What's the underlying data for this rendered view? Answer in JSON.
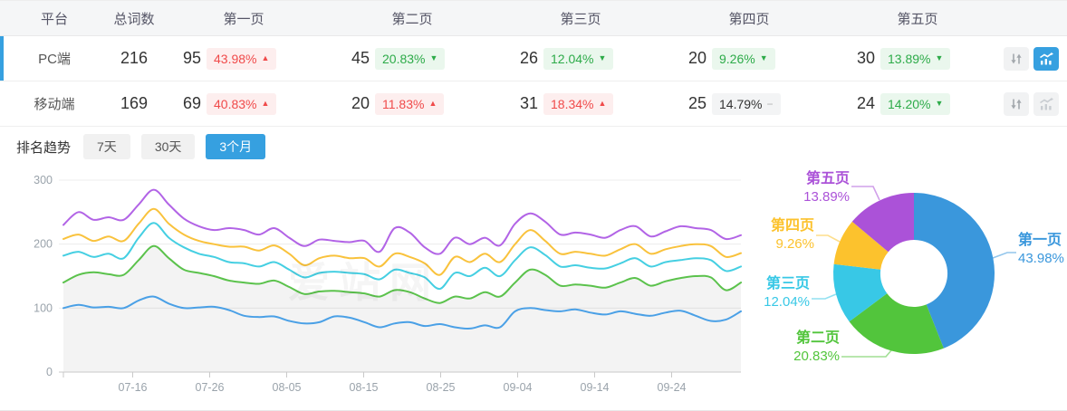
{
  "colors": {
    "accent": "#36a0e0",
    "badge_up_text": "#f04a4a",
    "badge_up_bg": "#fdeeee",
    "badge_down_text": "#2dab49",
    "badge_down_bg": "#eaf7ed",
    "badge_flat_text": "#333333",
    "badge_flat_bg": "#f3f4f5",
    "axis_text": "#9aa3ab",
    "grid_line": "#ececec",
    "axis_line": "#c9c9c9"
  },
  "table": {
    "columns": [
      "平台",
      "总词数",
      "第一页",
      "第二页",
      "第三页",
      "第四页",
      "第五页",
      ""
    ],
    "rows": [
      {
        "platform": "PC端",
        "total": "216",
        "active": true,
        "chart_selected": true,
        "pages": [
          {
            "count": "95",
            "pct": "43.98%",
            "trend": "up"
          },
          {
            "count": "45",
            "pct": "20.83%",
            "trend": "down"
          },
          {
            "count": "26",
            "pct": "12.04%",
            "trend": "down"
          },
          {
            "count": "20",
            "pct": "9.26%",
            "trend": "down"
          },
          {
            "count": "30",
            "pct": "13.89%",
            "trend": "down"
          }
        ]
      },
      {
        "platform": "移动端",
        "total": "169",
        "active": false,
        "chart_selected": false,
        "pages": [
          {
            "count": "69",
            "pct": "40.83%",
            "trend": "up"
          },
          {
            "count": "20",
            "pct": "11.83%",
            "trend": "up"
          },
          {
            "count": "31",
            "pct": "18.34%",
            "trend": "up"
          },
          {
            "count": "25",
            "pct": "14.79%",
            "trend": "flat"
          },
          {
            "count": "24",
            "pct": "14.20%",
            "trend": "down"
          }
        ]
      }
    ]
  },
  "trend_section": {
    "title": "排名趋势",
    "tabs": [
      {
        "label": "7天",
        "active": false
      },
      {
        "label": "30天",
        "active": false
      },
      {
        "label": "3个月",
        "active": true
      }
    ]
  },
  "watermark": "爱站网",
  "chart_data": [
    {
      "type": "line",
      "title": "排名趋势 3个月 (PC端, 累计排名词数)",
      "x_tick_labels": [
        "07-16",
        "07-26",
        "08-05",
        "08-15",
        "08-25",
        "09-04",
        "09-14",
        "09-24"
      ],
      "x_tick_days": [
        9,
        19,
        29,
        39,
        49,
        59,
        69,
        79
      ],
      "x_span_days": 88,
      "ylim": [
        0,
        300
      ],
      "y_ticks": [
        0,
        100,
        200,
        300
      ],
      "grid": true,
      "fill_under_series": "第二页(累计)",
      "series": [
        {
          "name": "第一页",
          "color": "#4aa0e6",
          "values": [
            100,
            105,
            101,
            102,
            100,
            112,
            118,
            107,
            100,
            101,
            102,
            97,
            88,
            86,
            87,
            80,
            76,
            78,
            87,
            85,
            78,
            70,
            76,
            78,
            72,
            75,
            70,
            68,
            73,
            70,
            95,
            100,
            97,
            95,
            98,
            93,
            90,
            95,
            91,
            88,
            93,
            96,
            88,
            80,
            82,
            95
          ]
        },
        {
          "name": "第二页(累计)",
          "color": "#5bc24c",
          "values": [
            140,
            152,
            156,
            153,
            152,
            175,
            197,
            178,
            160,
            155,
            150,
            143,
            140,
            138,
            143,
            133,
            122,
            126,
            127,
            125,
            123,
            118,
            128,
            125,
            115,
            108,
            118,
            115,
            125,
            118,
            140,
            160,
            152,
            135,
            137,
            135,
            132,
            140,
            147,
            135,
            142,
            147,
            150,
            148,
            128,
            140
          ]
        },
        {
          "name": "第三页(累计)",
          "color": "#45cfe2",
          "values": [
            182,
            188,
            180,
            185,
            178,
            210,
            233,
            210,
            195,
            185,
            180,
            172,
            170,
            165,
            172,
            160,
            148,
            155,
            157,
            155,
            153,
            145,
            160,
            155,
            148,
            130,
            155,
            150,
            163,
            150,
            175,
            195,
            183,
            165,
            167,
            163,
            162,
            170,
            178,
            165,
            172,
            175,
            178,
            175,
            158,
            165
          ]
        },
        {
          "name": "第四页(累计)",
          "color": "#f9c23c",
          "values": [
            208,
            215,
            205,
            212,
            205,
            232,
            255,
            232,
            215,
            205,
            200,
            196,
            196,
            190,
            198,
            185,
            167,
            178,
            182,
            178,
            178,
            165,
            185,
            180,
            170,
            152,
            180,
            172,
            185,
            172,
            200,
            222,
            205,
            185,
            188,
            185,
            182,
            192,
            200,
            185,
            192,
            197,
            200,
            197,
            180,
            186
          ]
        },
        {
          "name": "第五页(累计)",
          "color": "#b264e6",
          "values": [
            230,
            250,
            238,
            242,
            238,
            262,
            285,
            262,
            240,
            228,
            222,
            225,
            222,
            215,
            225,
            210,
            197,
            207,
            205,
            203,
            205,
            188,
            225,
            218,
            195,
            185,
            210,
            200,
            210,
            198,
            232,
            248,
            235,
            215,
            218,
            215,
            210,
            222,
            228,
            212,
            220,
            228,
            225,
            222,
            208,
            214
          ]
        }
      ]
    },
    {
      "type": "donut",
      "title": "当前排名分布 (PC端)",
      "slices": [
        {
          "label": "第一页",
          "pct": "43.98%",
          "value": 43.98,
          "color": "#3a97dc"
        },
        {
          "label": "第二页",
          "pct": "20.83%",
          "value": 20.83,
          "color": "#52c53c"
        },
        {
          "label": "第三页",
          "pct": "12.04%",
          "value": 12.04,
          "color": "#38c8e6"
        },
        {
          "label": "第四页",
          "pct": "9.26%",
          "value": 9.26,
          "color": "#fcc22d"
        },
        {
          "label": "第五页",
          "pct": "13.89%",
          "value": 13.89,
          "color": "#ab52d8"
        }
      ]
    }
  ]
}
